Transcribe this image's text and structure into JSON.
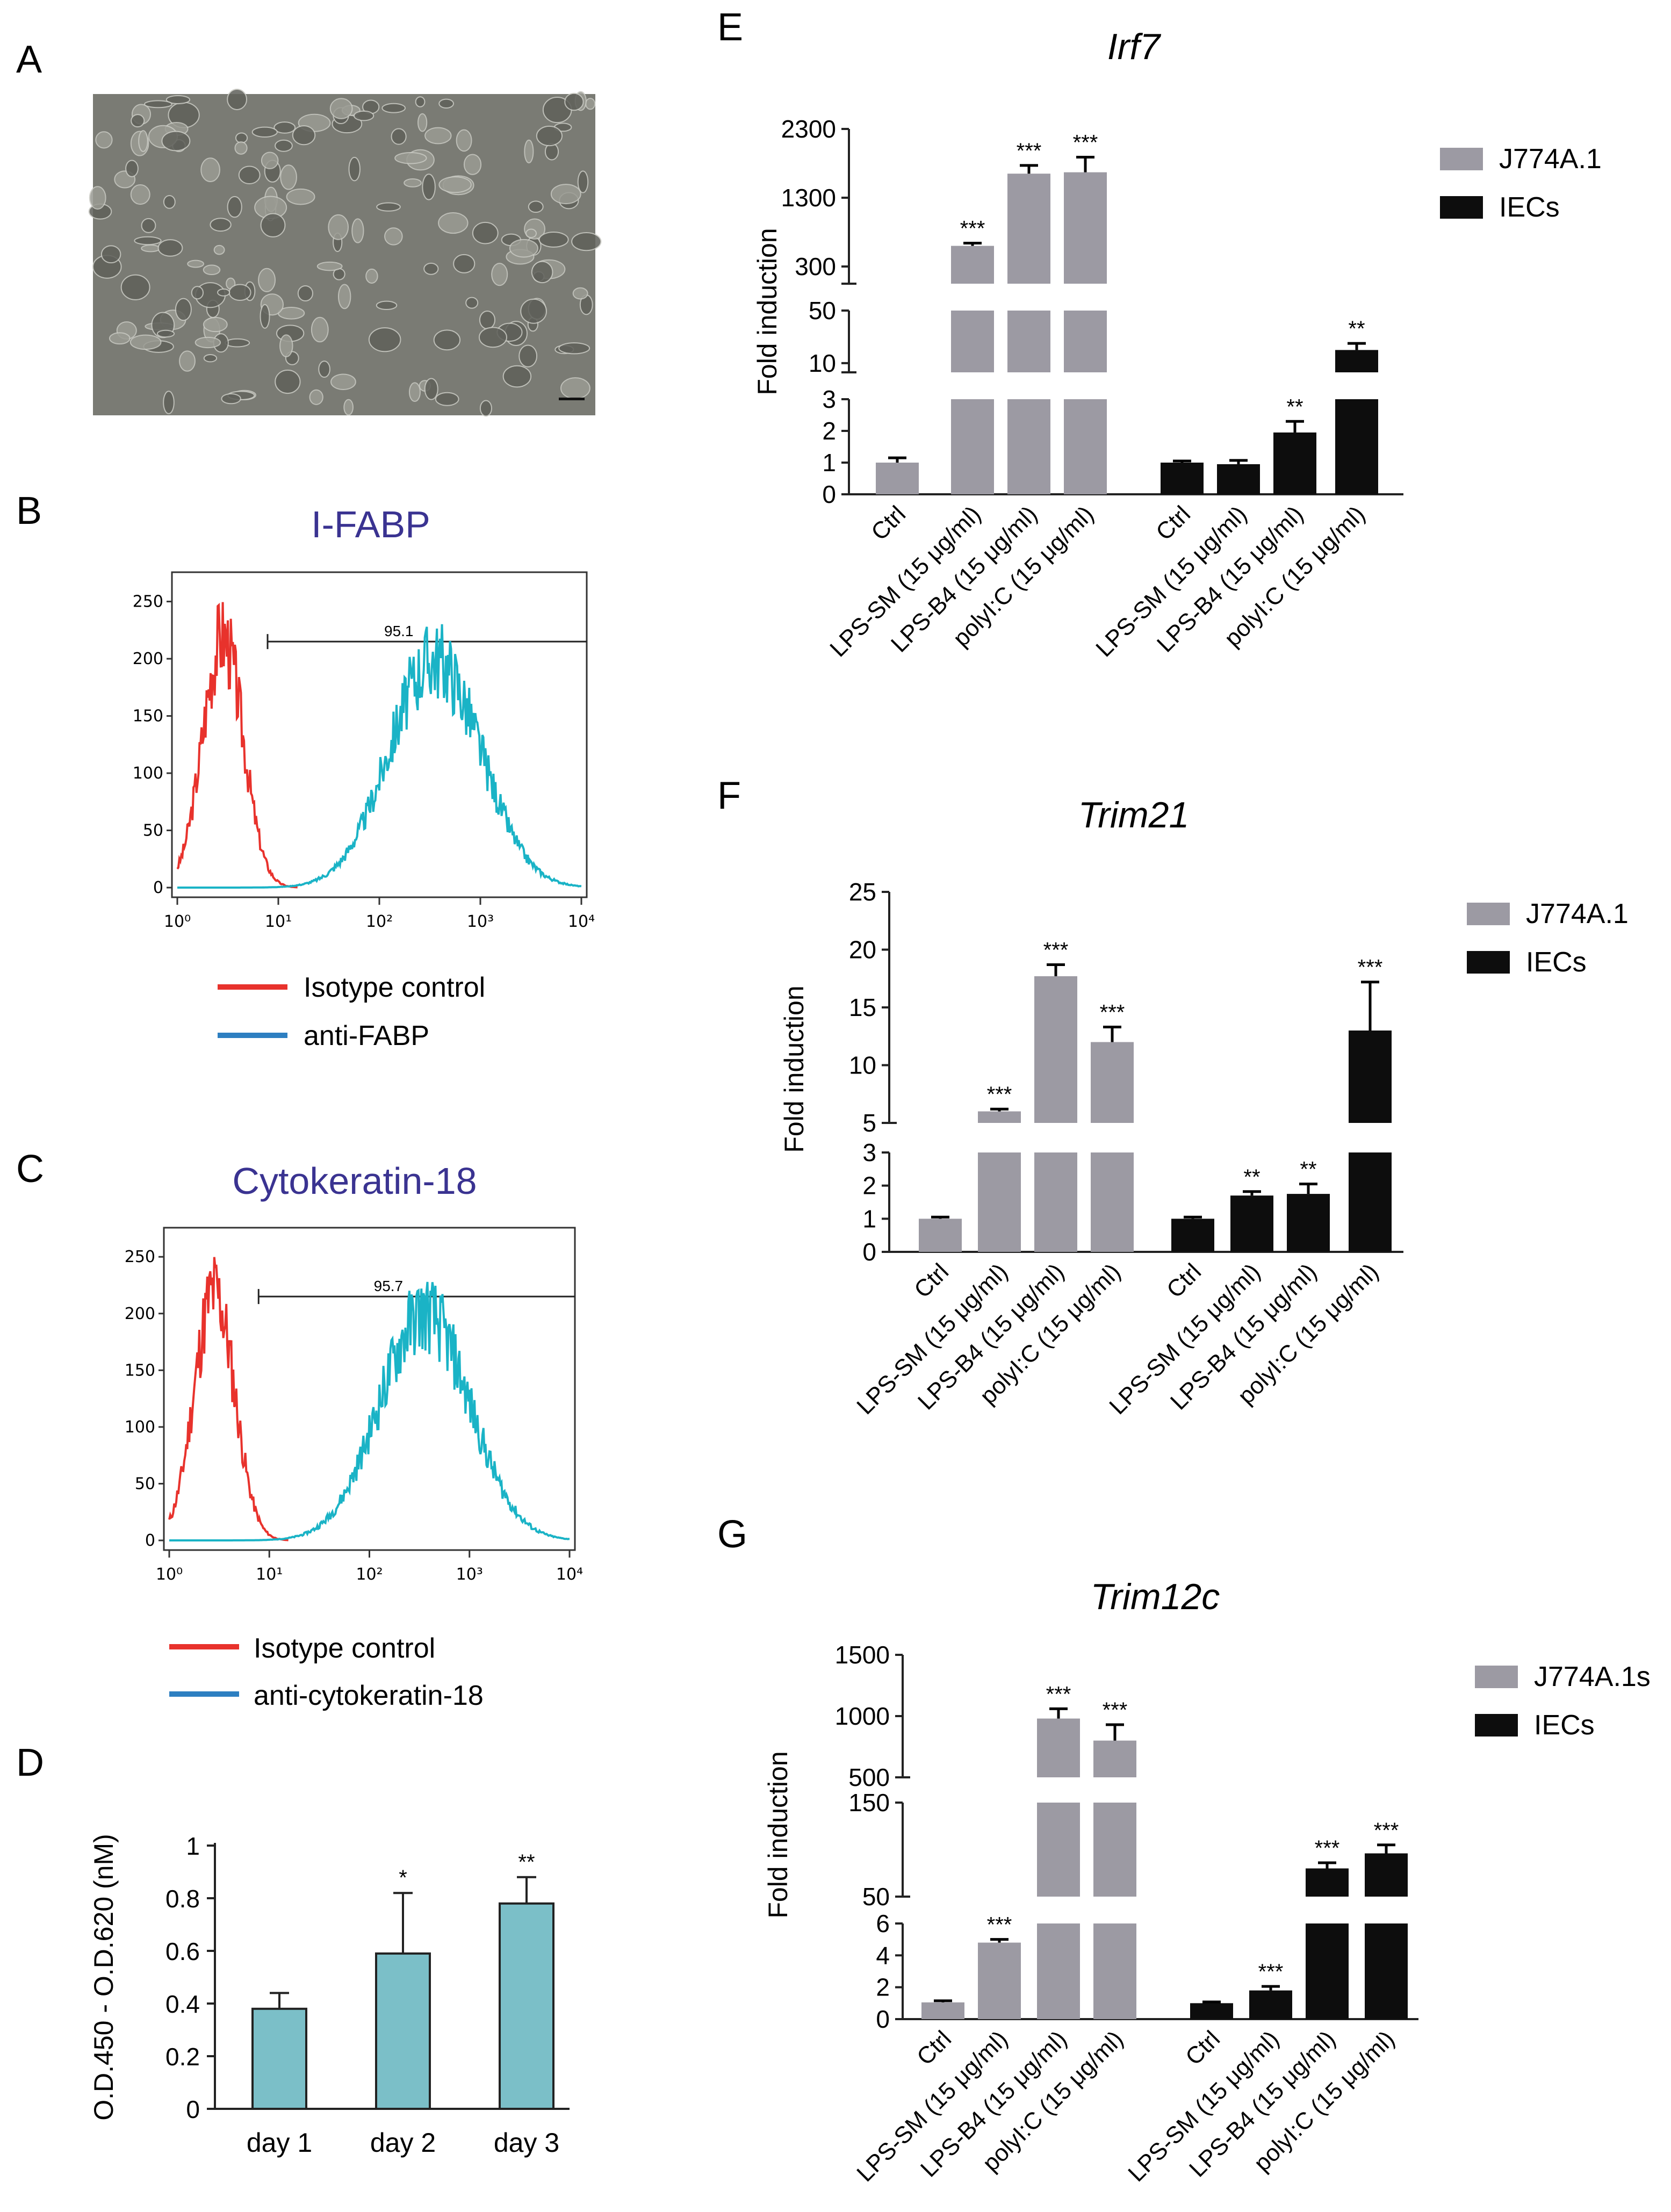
{
  "panel_labels": {
    "a": "A",
    "b": "B",
    "c": "C",
    "d": "D",
    "e": "E",
    "f": "F",
    "g": "G"
  },
  "colors": {
    "gray_bar": "#9c9aa3",
    "black_bar": "#0d0d0d",
    "teal_bar": "#7bbfc8",
    "isotype": "#e8322c",
    "antibody": "#1ab3c6",
    "legend_blue": "#2d7fc1",
    "title_purple": "#3a3391",
    "micrograph": "#7a7b74"
  },
  "micrograph": {
    "icon": "phase-contrast-micrograph-image"
  },
  "panel_b": {
    "title": "I-FABP",
    "gate_label": "95.1",
    "y_ticks": [
      "250",
      "200",
      "150",
      "100",
      "50",
      "0"
    ],
    "x_ticks": [
      "10⁰",
      "10¹",
      "10²",
      "10³",
      "10⁴"
    ],
    "legend": [
      {
        "label": "Isotype control"
      },
      {
        "label": "anti-FABP"
      }
    ]
  },
  "panel_c": {
    "title": "Cytokeratin-18",
    "gate_label": "95.7",
    "y_ticks": [
      "250",
      "200",
      "150",
      "100",
      "50",
      "0"
    ],
    "x_ticks": [
      "10⁰",
      "10¹",
      "10²",
      "10³",
      "10⁴"
    ],
    "legend": [
      {
        "label": "Isotype control"
      },
      {
        "label": "anti-cytokeratin-18"
      }
    ]
  },
  "chart_data": [
    {
      "panel": "D",
      "type": "bar",
      "ylabel": "O.D.450 - O.D.620 (nM)",
      "ylim": [
        0,
        1
      ],
      "y_ticks": [
        "0",
        "0.2",
        "0.4",
        "0.6",
        "0.8",
        "1"
      ],
      "categories": [
        "day 1",
        "day 2",
        "day 3"
      ],
      "values": [
        0.38,
        0.59,
        0.78
      ],
      "errors": [
        0.06,
        0.23,
        0.1
      ],
      "significance": [
        "",
        "*",
        "**"
      ]
    },
    {
      "panel": "E",
      "type": "bar",
      "title": "Irf7",
      "ylabel": "Fold induction",
      "y_ticks": [
        "0",
        "1",
        "2",
        "3",
        "10",
        "50",
        "300",
        "1300",
        "2300"
      ],
      "categories": [
        "Ctrl",
        "LPS-SM (15 μg/ml)",
        "LPS-B4 (15 μg/ml)",
        "polyI:C (15 μg/ml)"
      ],
      "series": [
        {
          "name": "J774A.1",
          "values": [
            1,
            600,
            1650,
            1670
          ],
          "errors": [
            0.15,
            40,
            120,
            220
          ],
          "significance": [
            "",
            "***",
            "***",
            "***"
          ]
        },
        {
          "name": "IECs",
          "values": [
            1,
            0.95,
            1.95,
            20
          ],
          "errors": [
            0.05,
            0.12,
            0.35,
            5
          ],
          "significance": [
            "",
            "",
            "**",
            "**"
          ]
        }
      ]
    },
    {
      "panel": "F",
      "type": "bar",
      "title": "Trim21",
      "ylabel": "Fold induction",
      "y_ticks": [
        "0",
        "1",
        "2",
        "3",
        "5",
        "10",
        "15",
        "20",
        "25"
      ],
      "categories": [
        "Ctrl",
        "LPS-SM (15 μg/ml)",
        "LPS-B4 (15 μg/ml)",
        "polyI:C (15 μg/ml)"
      ],
      "series": [
        {
          "name": "J774A.1",
          "values": [
            1,
            6,
            17.7,
            12
          ],
          "errors": [
            0.05,
            0.2,
            1,
            1.3
          ],
          "significance": [
            "",
            "***",
            "***",
            "***"
          ]
        },
        {
          "name": "IECs",
          "values": [
            1,
            1.7,
            1.75,
            13
          ],
          "errors": [
            0.05,
            0.12,
            0.3,
            4.2
          ],
          "significance": [
            "",
            "**",
            "**",
            "***"
          ]
        }
      ]
    },
    {
      "panel": "G",
      "type": "bar",
      "title": "Trim12c",
      "ylabel": "Fold induction",
      "y_ticks": [
        "0",
        "2",
        "4",
        "6",
        "50",
        "150",
        "500",
        "1000",
        "1500"
      ],
      "categories": [
        "Ctrl",
        "LPS-SM (15 μg/ml)",
        "LPS-B4 (15 μg/ml)",
        "polyI:C (15 μg/ml)"
      ],
      "series": [
        {
          "name": "J774A.1s",
          "values": [
            1.05,
            4.8,
            980,
            800
          ],
          "errors": [
            0.1,
            0.2,
            80,
            130
          ],
          "significance": [
            "",
            "***",
            "***",
            "***"
          ]
        },
        {
          "name": "IECs",
          "values": [
            1,
            1.8,
            80,
            96
          ],
          "errors": [
            0.08,
            0.25,
            6,
            9
          ],
          "significance": [
            "",
            "***",
            "***",
            "***"
          ]
        }
      ]
    }
  ]
}
